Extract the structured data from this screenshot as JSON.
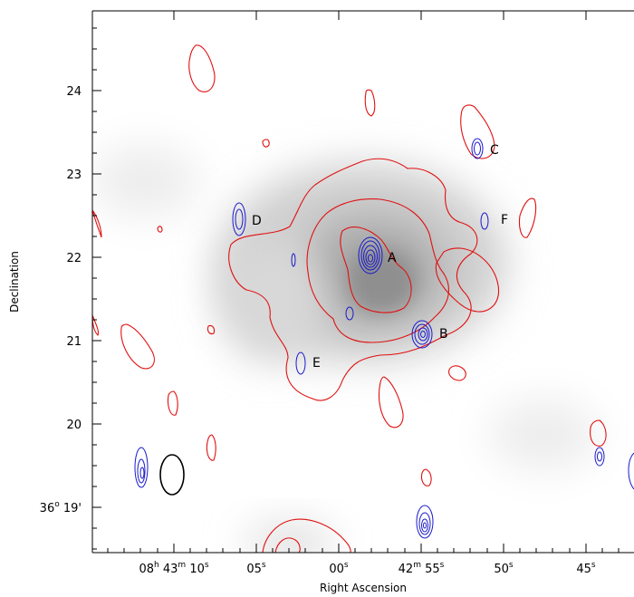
{
  "figure": {
    "xlabel": "Right Ascension",
    "ylabel": "Declination",
    "colors": {
      "contour_red": "#e01010",
      "contour_blue": "#1a1acc",
      "background": "#ffffff"
    },
    "x_ticks": [
      {
        "label": "08h 43m 10s",
        "hh": "08",
        "mm": "43",
        "ss": "10"
      },
      {
        "label": "05s"
      },
      {
        "label": "00s"
      },
      {
        "label": "42m 55s",
        "mm": "42",
        "ss": "55"
      },
      {
        "label": "50s"
      },
      {
        "label": "45s"
      }
    ],
    "y_ticks": [
      "24",
      "23",
      "22",
      "21",
      "20"
    ],
    "y_bottom": {
      "deg": "36",
      "min": "19'"
    },
    "sources": [
      "A",
      "B",
      "C",
      "D",
      "E",
      "F"
    ]
  }
}
